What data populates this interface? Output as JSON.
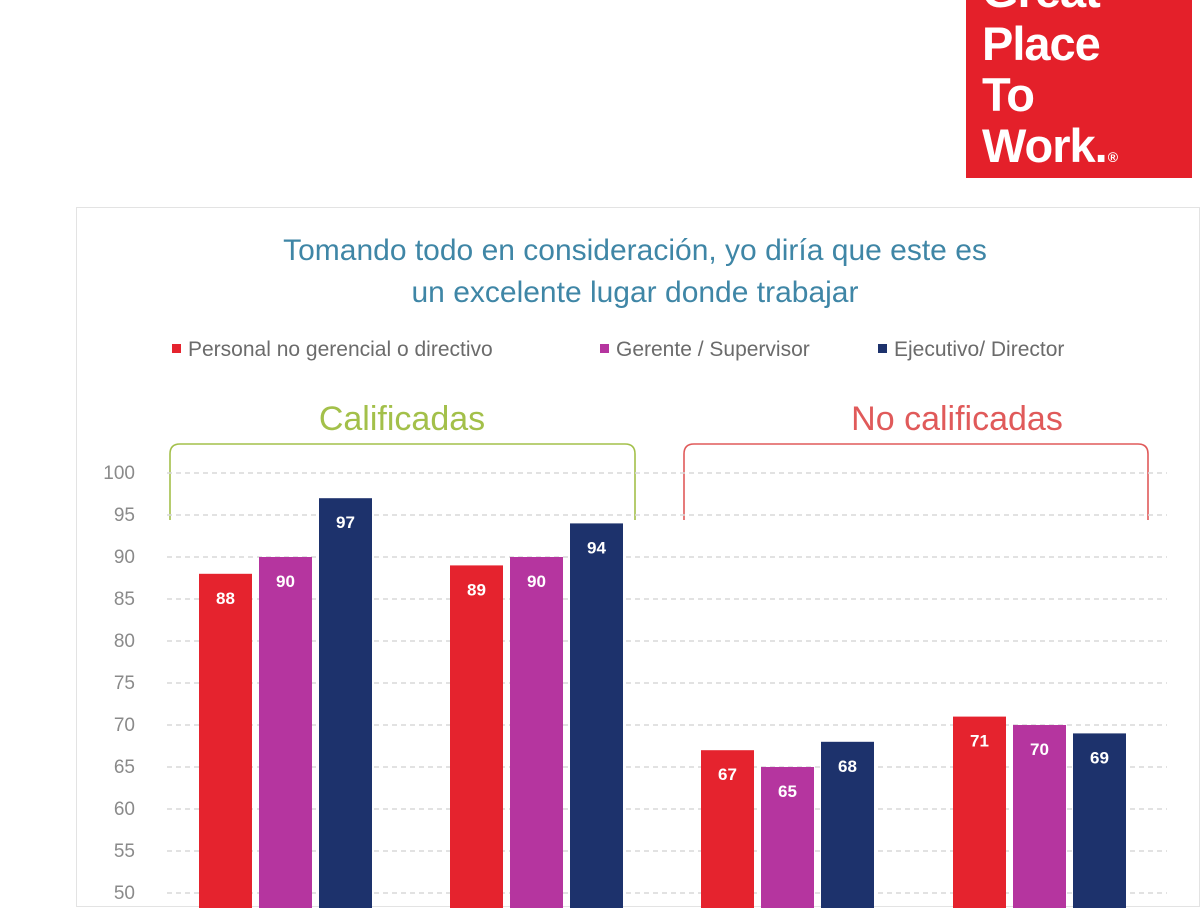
{
  "logo": {
    "lines": [
      "Great",
      "Place",
      "To",
      "Work."
    ],
    "mark": "®",
    "color": "#e4202a"
  },
  "chart_data": {
    "type": "bar",
    "title_lines": [
      "Tomando todo en consideración, yo diría que este es",
      "un excelente lugar donde trabajar"
    ],
    "xlabel": "",
    "ylabel": "",
    "ylim": [
      50,
      100
    ],
    "yticks": [
      100,
      95,
      90,
      85,
      80,
      75,
      70,
      65,
      60,
      55,
      50
    ],
    "grid": true,
    "legend_position": "top",
    "categories": [
      "",
      "",
      "",
      ""
    ],
    "series": [
      {
        "name": "Personal no gerencial o directivo",
        "color": "#e5232e",
        "values": [
          88,
          89,
          67,
          71
        ]
      },
      {
        "name": "Gerente / Supervisor",
        "color": "#b5359f",
        "values": [
          90,
          90,
          65,
          70
        ]
      },
      {
        "name": "Ejecutivo/ Director",
        "color": "#1d326c",
        "values": [
          97,
          94,
          68,
          69
        ]
      }
    ],
    "groups": [
      {
        "label": "Calificadas",
        "color": "#a3c04a"
      },
      {
        "label": "No calificadas",
        "color": "#e05a5a"
      }
    ]
  }
}
